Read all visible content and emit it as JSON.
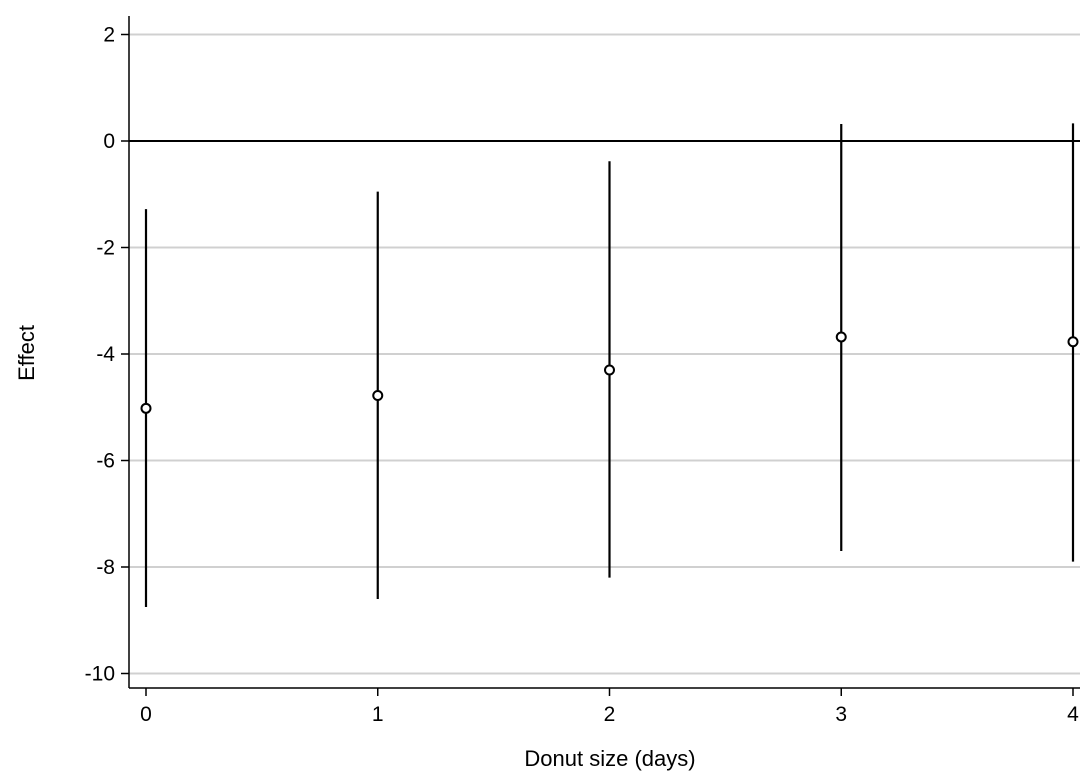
{
  "chart_data": {
    "type": "scatter",
    "title": "",
    "xlabel": "Donut size (days)",
    "ylabel": "Effect",
    "x_ticks": [
      "0",
      "1",
      "2",
      "3",
      "4"
    ],
    "y_ticks": [
      "2",
      "0",
      "-2",
      "-4",
      "-6",
      "-8",
      "-10"
    ],
    "xlim": [
      0,
      4
    ],
    "ylim": [
      -10.3,
      2.3
    ],
    "grid": true,
    "reference_line_y": 0,
    "series": [
      {
        "x": [
          0,
          1,
          2,
          3,
          4
        ],
        "y": [
          -5.02,
          -4.78,
          -4.3,
          -3.68,
          -3.77
        ],
        "ci_low": [
          -8.75,
          -8.6,
          -8.2,
          -7.7,
          -7.9
        ],
        "ci_high": [
          -1.28,
          -0.95,
          -0.38,
          0.32,
          0.33
        ]
      }
    ],
    "colors": {
      "marker": "#000000",
      "marker_fill": "#ffffff",
      "grid": "#d0d0d0",
      "axis": "#000000"
    }
  }
}
